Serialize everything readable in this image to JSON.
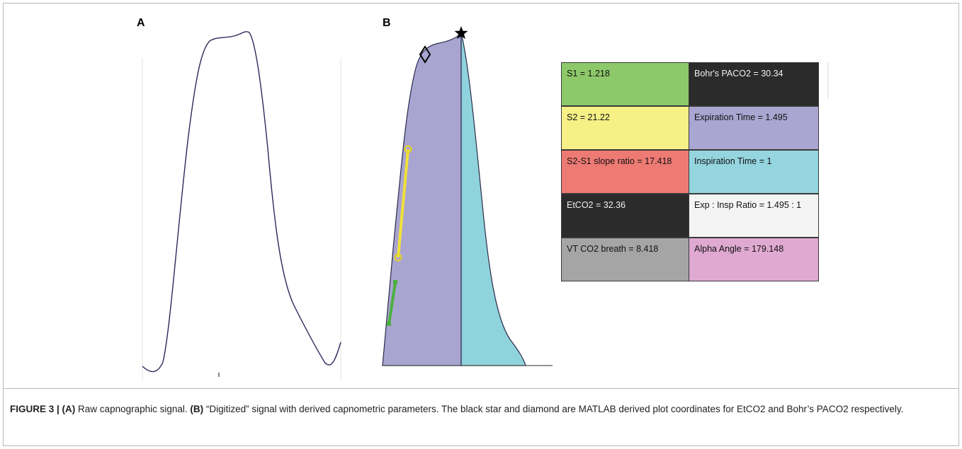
{
  "panels": {
    "a": {
      "label": "A"
    },
    "b": {
      "label": "B"
    }
  },
  "colors": {
    "expiration_fill": "#a9a5d1",
    "inspiration_fill": "#8fd3dd",
    "s1_segment": "#4caf3f",
    "s2_segment": "#f1e03a",
    "raw_signal_line": "#2a2a5c"
  },
  "markers": {
    "etco2": "star-icon",
    "bohr_paco2": "diamond-icon"
  },
  "parameters": [
    {
      "text": "S1 = 1.218",
      "color": "#8dc96a",
      "dark": false
    },
    {
      "text": "Bohr's PACO2 = 30.34",
      "color": "#2b2b2b",
      "dark": true
    },
    {
      "text": "S2 = 21.22",
      "color": "#f6f086",
      "dark": false
    },
    {
      "text": "Expiration Time = 1.495",
      "color": "#aaa6d2",
      "dark": false
    },
    {
      "text": "S2-S1 slope ratio = 17.418",
      "color": "#ee7a74",
      "dark": false
    },
    {
      "text": "Inspiration Time = 1",
      "color": "#94d5df",
      "dark": false
    },
    {
      "text": "EtCO2 = 32.36",
      "color": "#2b2b2b",
      "dark": true
    },
    {
      "text": "Exp  :  Insp Ratio  =  1.495  :  1",
      "color": "#f4f4f4",
      "dark": false
    },
    {
      "text": "VT CO2 breath = 8.418",
      "color": "#a5a5a5",
      "dark": false
    },
    {
      "text": "Alpha Angle = 179.148",
      "color": "#dfa9d2",
      "dark": false
    }
  ],
  "caption": {
    "figure": "FIGURE 3 | ",
    "a_tag": "(A)",
    "a_text": " Raw capnographic signal. ",
    "b_tag": "(B)",
    "b_text": " “Digitized” signal with derived capnometric parameters. The black star and diamond are MATLAB derived plot coordinates for EtCO2 and Bohr’s PACO2 respectively."
  }
}
